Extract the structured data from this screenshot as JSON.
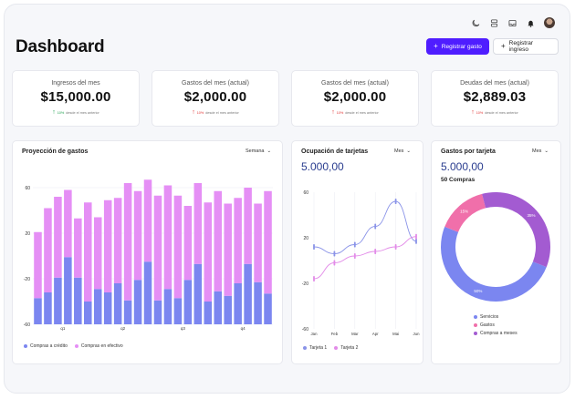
{
  "header": {
    "title": "Dashboard",
    "primary_button": "Registrar gasto",
    "secondary_button": "Registrar ingreso",
    "icons": [
      "moon-icon",
      "database-icon",
      "inbox-icon",
      "bell-icon",
      "avatar"
    ]
  },
  "kpis": [
    {
      "label": "Ingresos del mes",
      "value": "$15,000.00",
      "change": "10%",
      "change_text": "desde el mes anterior",
      "direction": "up",
      "color": "#1a9e4b"
    },
    {
      "label": "Gastos del mes (actual)",
      "value": "$2,000.00",
      "change": "10%",
      "change_text": "desde el mes anterior",
      "direction": "up",
      "color": "#e03131"
    },
    {
      "label": "Gastos del mes (actual)",
      "value": "$2,000.00",
      "change": "10%",
      "change_text": "desde el mes anterior",
      "direction": "up",
      "color": "#e03131"
    },
    {
      "label": "Deudas del mes (actual)",
      "value": "$2,889.03",
      "change": "10%",
      "change_text": "desde el mes anterior",
      "direction": "up",
      "color": "#e03131"
    }
  ],
  "projection": {
    "title": "Proyección de gastos",
    "dropdown": "Semana",
    "legend": [
      "Compras a crédito",
      "Compras en efectivo"
    ]
  },
  "occupancy": {
    "title": "Ocupación de tarjetas",
    "dropdown": "Mes",
    "value": "5.000,00",
    "legend": [
      "Tarjeta 1",
      "Tarjeta 2"
    ]
  },
  "card_expenses": {
    "title": "Gastos por tarjeta",
    "dropdown": "Mes",
    "value": "5.000,00",
    "subtitle": "50 Compras",
    "legend": [
      "Servicios",
      "Gastos",
      "Compras a meses"
    ]
  },
  "colors": {
    "accent": "#4f1dff",
    "bar_credit": "#7b86f0",
    "bar_cash": "#e58ff5",
    "line1": "#8a93e8",
    "line2": "#e28be8",
    "donut_servicios": "#7b86f0",
    "donut_gastos": "#f06faa",
    "donut_compras": "#a35bd1"
  },
  "chart_data": [
    {
      "type": "bar",
      "stacked": true,
      "categories": [
        "",
        "",
        "",
        "",
        "",
        "",
        "",
        "",
        "",
        "",
        "",
        "",
        "",
        "",
        "",
        "",
        "",
        "",
        "",
        "",
        "",
        "",
        "",
        ""
      ],
      "x_tick_labels": [
        "q1",
        "q2",
        "q3",
        "q4"
      ],
      "ylim": [
        -60,
        60
      ],
      "yticks": [
        60,
        20,
        -20,
        -60
      ],
      "series": [
        {
          "name": "Compras a crédito",
          "values": [
            -37,
            -32,
            -19,
            -1,
            -19,
            -40,
            -29,
            -32,
            -24,
            -39,
            -21,
            -5,
            -39,
            -29,
            -37,
            -21,
            -7,
            -40,
            -31,
            -35,
            -24,
            -7,
            -23,
            -33
          ]
        },
        {
          "name": "Compras en efectivo",
          "values": [
            21,
            42,
            52,
            58,
            33,
            47,
            34,
            49,
            51,
            64,
            57,
            67,
            53,
            62,
            53,
            44,
            64,
            47,
            57,
            46,
            51,
            60,
            46,
            57
          ]
        }
      ]
    },
    {
      "type": "line",
      "x": [
        "Jan",
        "Feb",
        "Mar",
        "Apr",
        "Mai",
        "Jun"
      ],
      "ylim": [
        -60,
        60
      ],
      "yticks": [
        60,
        20,
        -20,
        -60
      ],
      "series": [
        {
          "name": "Tarjeta 1",
          "values": [
            12,
            6,
            14,
            30,
            52,
            17
          ]
        },
        {
          "name": "Tarjeta 2",
          "values": [
            -16,
            -2,
            4,
            8,
            12,
            21
          ]
        }
      ]
    },
    {
      "type": "pie",
      "donut": true,
      "labels": [
        "Servicios",
        "Gastos",
        "Compras a meses"
      ],
      "values": [
        50,
        15,
        35
      ],
      "label_text": [
        "50%",
        "15%",
        "35%"
      ]
    }
  ]
}
